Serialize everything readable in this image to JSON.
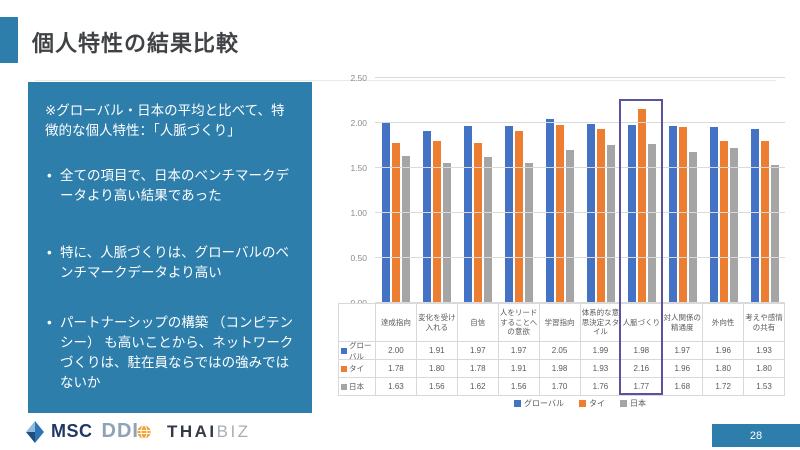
{
  "slide": {
    "title": "個人特性の結果比較",
    "page_number": "28"
  },
  "textbox": {
    "intro": "※グローバル・日本の平均と比べて、特徴的な個人特性：「人脈づくり」",
    "bullets": [
      "全ての項目で、日本のベンチマークデータより高い結果であった",
      "特に、人脈づくりは、グローバルのベンチマークデータより高い",
      "パートナーシップの構築 （コンピテンシー） も高いことから、ネットワークづくりは、駐在員ならではの強みではないか"
    ]
  },
  "chart_data": {
    "type": "bar",
    "title": "",
    "categories": [
      "達成指向",
      "変化を受け入れる",
      "自信",
      "人をリードすることへの意欲",
      "学習指向",
      "体系的な意思決定スタイル",
      "人脈づくり",
      "対人関係の精通度",
      "外向性",
      "考えや感情の共有"
    ],
    "series": [
      {
        "name": "グローバル",
        "color": "#4472C4",
        "values": [
          2.0,
          1.91,
          1.97,
          1.97,
          2.05,
          1.99,
          1.98,
          1.97,
          1.96,
          1.93
        ]
      },
      {
        "name": "タイ",
        "color": "#ED7D31",
        "values": [
          1.78,
          1.8,
          1.78,
          1.91,
          1.98,
          1.93,
          2.16,
          1.96,
          1.8,
          1.8
        ]
      },
      {
        "name": "日本",
        "color": "#A5A5A5",
        "values": [
          1.63,
          1.56,
          1.62,
          1.56,
          1.7,
          1.76,
          1.77,
          1.68,
          1.72,
          1.53
        ]
      }
    ],
    "ylim": [
      0,
      2.5
    ],
    "yticks": [
      "0.00",
      "0.50",
      "1.00",
      "1.50",
      "2.00",
      "2.50"
    ],
    "grid": true,
    "legend_position": "bottom",
    "data_table_shown": true,
    "highlighted_category": "人脈づくり",
    "highlight_color": "#5B529E"
  },
  "footer": {
    "logo_msc": "MSC",
    "logo_ddi": "DDI",
    "logo_thai": "THAI",
    "logo_biz": "BIZ"
  },
  "colors": {
    "accent_blue": "#2E7EAC",
    "title_text": "#3F4345",
    "grid": "#DADADA",
    "table_text": "#595959"
  }
}
